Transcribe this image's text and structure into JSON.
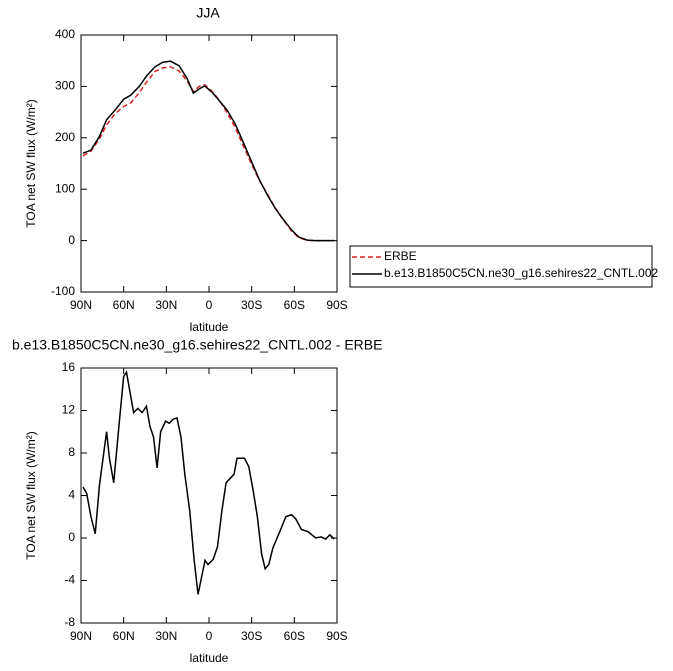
{
  "chart_data": [
    {
      "type": "line",
      "title": "JJA",
      "xlabel": "latitude",
      "ylabel": "TOA net SW flux (W/m²)",
      "x": [
        88.6,
        83,
        77,
        72,
        66,
        60,
        55,
        49,
        44,
        38,
        32.5,
        27,
        21,
        15.5,
        11,
        7,
        3,
        -2,
        -7,
        -12.7,
        -18.4,
        -24,
        -30,
        -35.5,
        -41,
        -46.5,
        -52,
        -58,
        -63,
        -69,
        -74.6,
        -81.6,
        -88
      ],
      "series": [
        {
          "name": "ERBE",
          "color": "#e02020",
          "dash": true,
          "values": [
            165,
            174,
            198,
            225,
            247,
            261,
            268,
            288,
            308,
            329,
            336,
            338,
            330,
            311,
            290,
            300,
            303,
            291,
            274,
            249,
            220,
            185,
            148,
            117,
            91,
            64,
            41,
            19,
            6,
            0.5,
            0,
            0,
            0
          ]
        },
        {
          "name": "b.e13.B1850C5CN.ne30_g16.sehires22_CNTL.002",
          "color": "#000000",
          "dash": false,
          "values": [
            170,
            176,
            203,
            235,
            254,
            275,
            283,
            300,
            320,
            338,
            347,
            349,
            340,
            316,
            287,
            295,
            301,
            289,
            273,
            254,
            227,
            192,
            153,
            118,
            89,
            63,
            42,
            21,
            7,
            1,
            0,
            0,
            0
          ]
        }
      ],
      "xlim": [
        90,
        -90
      ],
      "xticks": [
        {
          "value": 90,
          "label": "90N"
        },
        {
          "value": 60,
          "label": "60N"
        },
        {
          "value": 30,
          "label": "30N"
        },
        0,
        {
          "value": -30,
          "label": "30S"
        },
        {
          "value": -60,
          "label": "60S"
        },
        {
          "value": -90,
          "label": "90S"
        }
      ],
      "ylim": [
        -100,
        400
      ],
      "yticks": [
        -100,
        0,
        100,
        200,
        300,
        400
      ],
      "legend": "right"
    },
    {
      "type": "line",
      "title": "b.e13.B1850C5CN.ne30_g16.sehires22_CNTL.002 - ERBE",
      "xlabel": "latitude",
      "ylabel": "TOA net SW flux (W/m²)",
      "x": [
        88.6,
        86,
        83,
        80,
        77,
        72,
        70,
        67,
        63,
        60,
        58,
        53,
        50,
        47,
        44,
        41.5,
        39,
        36.5,
        34,
        30.5,
        28,
        25,
        22.5,
        19.7,
        17,
        13.5,
        10.5,
        7.7,
        2.8,
        0.7,
        -3,
        -6,
        -9,
        -12,
        -17.6,
        -19.7,
        -25,
        -28,
        -31,
        -34,
        -37,
        -39.5,
        -42,
        -45,
        -50.7,
        -54,
        -58,
        -61,
        -65,
        -69.6,
        -75,
        -78.8,
        -82,
        -85,
        -88
      ],
      "series": [
        {
          "color": "#000000",
          "dash": false,
          "values": [
            4.8,
            4.2,
            2,
            0.4,
            5,
            10,
            7.5,
            5.2,
            11,
            15.2,
            15.6,
            11.8,
            12.2,
            11.8,
            12.4,
            10.5,
            9.5,
            6.6,
            10,
            11,
            10.8,
            11.2,
            11.3,
            9.5,
            6,
            2.5,
            -2,
            -5.3,
            -2.1,
            -2.5,
            -2,
            -0.8,
            2.5,
            5.2,
            6,
            7.5,
            7.5,
            6.7,
            4.5,
            2,
            -1.5,
            -2.9,
            -2.5,
            -0.9,
            0.9,
            2,
            2.2,
            1.8,
            0.8,
            0.6,
            0,
            0.1,
            -0.1,
            0.3,
            -0.1
          ]
        }
      ],
      "xlim": [
        90,
        -90
      ],
      "xticks": [
        {
          "value": 90,
          "label": "90N"
        },
        {
          "value": 60,
          "label": "60N"
        },
        {
          "value": 30,
          "label": "30N"
        },
        0,
        {
          "value": -30,
          "label": "30S"
        },
        {
          "value": -60,
          "label": "60S"
        },
        {
          "value": -90,
          "label": "90S"
        }
      ],
      "ylim": [
        -8,
        16
      ],
      "yticks": [
        -8,
        -4,
        0,
        4,
        8,
        12,
        16
      ]
    }
  ]
}
